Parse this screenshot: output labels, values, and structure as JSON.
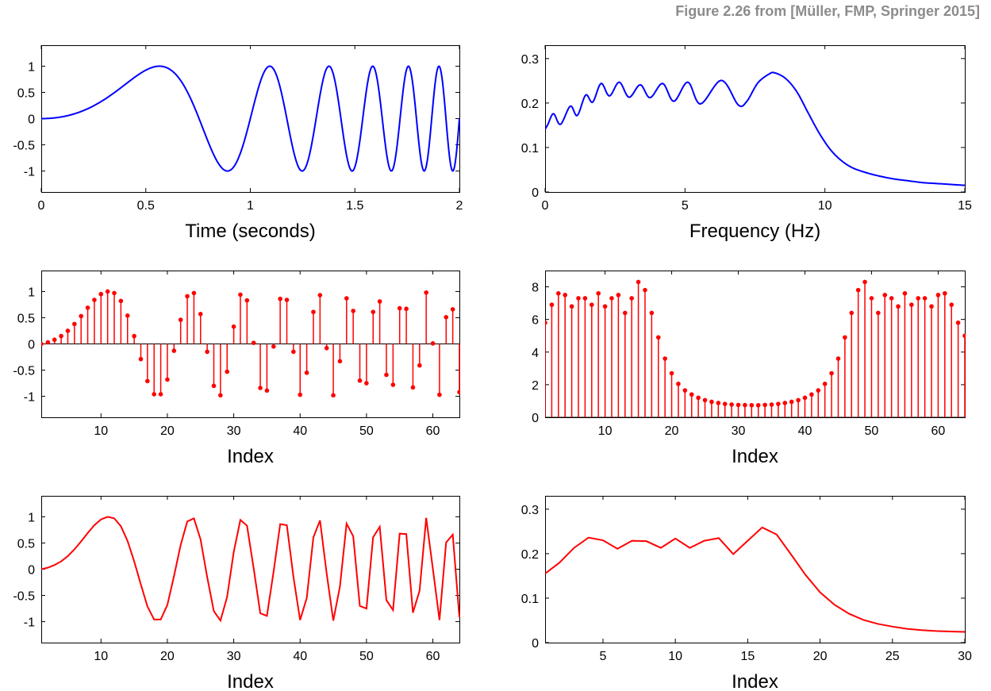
{
  "figure_title": "Figure 2.26 from [Müller, FMP, Springer 2015]",
  "colors": {
    "blue": "#0000ff",
    "red": "#ff0000",
    "axis": "#000000",
    "title": "#8c8c8c"
  },
  "chart_data": [
    {
      "id": "chirp-continuous",
      "type": "line",
      "color": "#0000ff",
      "function": "sin(pi*(t^2 + t^3))",
      "xlabel": "Time (seconds)",
      "xlim": [
        0,
        2
      ],
      "ylim": [
        -1.4,
        1.4
      ],
      "xticks": [
        0,
        0.5,
        1,
        1.5,
        2
      ],
      "xticklabels": [
        "0",
        "0.5",
        "1",
        "1.5",
        "2"
      ],
      "yticks": [
        1,
        0.5,
        0,
        -0.5,
        -1
      ],
      "yticklabels": [
        "1",
        "0.5",
        "0",
        "-0.5",
        "-1"
      ],
      "sample_count": 600
    },
    {
      "id": "spectrum-continuous",
      "type": "line",
      "color": "#0000ff",
      "xlabel": "Frequency (Hz)",
      "xlim": [
        0,
        15
      ],
      "ylim": [
        0,
        0.33
      ],
      "xticks": [
        0,
        5,
        10,
        15
      ],
      "xticklabels": [
        "0",
        "5",
        "10",
        "15"
      ],
      "yticks": [
        0.3,
        0.2,
        0.1,
        0
      ],
      "yticklabels": [
        "0.3",
        "0.2",
        "0.1",
        "0"
      ],
      "series": [
        {
          "x": [
            0,
            0.1,
            0.3,
            0.55,
            0.9,
            1.15,
            1.45,
            1.7,
            2.0,
            2.3,
            2.65,
            3.0,
            3.4,
            3.75,
            4.2,
            4.6,
            5.1,
            5.55,
            6.3,
            6.9,
            7.2,
            7.6,
            8.0,
            8.2,
            8.6,
            9.0,
            9.4,
            9.8,
            10.2,
            10.6,
            11.0,
            11.5,
            12.0,
            12.5,
            13.0,
            13.5,
            14.0,
            14.5,
            15.0
          ],
          "y": [
            0.141,
            0.152,
            0.176,
            0.152,
            0.193,
            0.172,
            0.218,
            0.202,
            0.244,
            0.216,
            0.247,
            0.213,
            0.241,
            0.212,
            0.244,
            0.204,
            0.247,
            0.198,
            0.251,
            0.196,
            0.203,
            0.245,
            0.265,
            0.268,
            0.255,
            0.225,
            0.178,
            0.132,
            0.095,
            0.07,
            0.054,
            0.043,
            0.035,
            0.029,
            0.025,
            0.021,
            0.019,
            0.017,
            0.015
          ]
        }
      ]
    },
    {
      "id": "chirp-samples-stem",
      "type": "stem",
      "color": "#ff0000",
      "xlabel": "Index",
      "xlim": [
        1,
        64
      ],
      "ylim": [
        -1.4,
        1.4
      ],
      "xticks": [
        10,
        20,
        30,
        40,
        50,
        60
      ],
      "xticklabels": [
        "10",
        "20",
        "30",
        "40",
        "50",
        "60"
      ],
      "yticks": [
        1,
        0.5,
        0,
        -0.5,
        -1
      ],
      "yticklabels": [
        "1",
        "0.5",
        "0",
        "-0.5",
        "-1"
      ],
      "values": [
        0,
        0.03,
        0.08,
        0.15,
        0.25,
        0.38,
        0.53,
        0.69,
        0.84,
        0.95,
        1.0,
        0.97,
        0.82,
        0.54,
        0.15,
        -0.29,
        -0.71,
        -0.96,
        -0.96,
        -0.68,
        -0.13,
        0.46,
        0.91,
        0.97,
        0.57,
        -0.15,
        -0.8,
        -0.98,
        -0.53,
        0.33,
        0.94,
        0.83,
        0.02,
        -0.84,
        -0.89,
        -0.05,
        0.86,
        0.84,
        -0.15,
        -0.97,
        -0.55,
        0.61,
        0.93,
        -0.08,
        -0.98,
        -0.33,
        0.87,
        0.63,
        -0.7,
        -0.75,
        0.61,
        0.81,
        -0.59,
        -0.78,
        0.68,
        0.67,
        -0.83,
        -0.41,
        0.98,
        0.01,
        -0.97,
        0.51,
        0.66,
        -0.92
      ]
    },
    {
      "id": "dft-magnitude-stem",
      "type": "stem",
      "color": "#ff0000",
      "xlabel": "Index",
      "xlim": [
        1,
        64
      ],
      "ylim": [
        0,
        9
      ],
      "xticks": [
        10,
        20,
        30,
        40,
        50,
        60
      ],
      "xticklabels": [
        "10",
        "20",
        "30",
        "40",
        "50",
        "60"
      ],
      "yticks": [
        8,
        6,
        4,
        2,
        0
      ],
      "yticklabels": [
        "8",
        "6",
        "4",
        "2",
        "0"
      ],
      "values": [
        5.8,
        6.9,
        7.6,
        7.5,
        6.8,
        7.3,
        7.3,
        6.9,
        7.6,
        6.8,
        7.3,
        7.5,
        6.4,
        7.3,
        8.3,
        7.8,
        6.4,
        4.9,
        3.6,
        2.7,
        2.05,
        1.65,
        1.4,
        1.2,
        1.05,
        0.95,
        0.88,
        0.82,
        0.78,
        0.76,
        0.75,
        0.74,
        0.74,
        0.76,
        0.78,
        0.82,
        0.88,
        0.95,
        1.05,
        1.2,
        1.4,
        1.65,
        2.05,
        2.7,
        3.6,
        4.9,
        6.4,
        7.8,
        8.3,
        7.3,
        6.4,
        7.5,
        7.3,
        6.8,
        7.6,
        6.9,
        7.3,
        7.3,
        6.8,
        7.5,
        7.6,
        6.9,
        5.8,
        5.0
      ]
    },
    {
      "id": "chirp-samples-line",
      "type": "line",
      "color": "#ff0000",
      "xlabel": "Index",
      "xlim": [
        1,
        64
      ],
      "ylim": [
        -1.4,
        1.4
      ],
      "xticks": [
        10,
        20,
        30,
        40,
        50,
        60
      ],
      "xticklabels": [
        "10",
        "20",
        "30",
        "40",
        "50",
        "60"
      ],
      "yticks": [
        1,
        0.5,
        0,
        -0.5,
        -1
      ],
      "yticklabels": [
        "1",
        "0.5",
        "0",
        "-0.5",
        "-1"
      ],
      "values": [
        0,
        0.03,
        0.08,
        0.15,
        0.25,
        0.38,
        0.53,
        0.69,
        0.84,
        0.95,
        1.0,
        0.97,
        0.82,
        0.54,
        0.15,
        -0.29,
        -0.71,
        -0.96,
        -0.96,
        -0.68,
        -0.13,
        0.46,
        0.91,
        0.97,
        0.57,
        -0.15,
        -0.8,
        -0.98,
        -0.53,
        0.33,
        0.94,
        0.83,
        0.02,
        -0.84,
        -0.89,
        -0.05,
        0.86,
        0.84,
        -0.15,
        -0.97,
        -0.55,
        0.61,
        0.93,
        -0.08,
        -0.98,
        -0.33,
        0.87,
        0.63,
        -0.7,
        -0.75,
        0.61,
        0.81,
        -0.59,
        -0.78,
        0.68,
        0.67,
        -0.83,
        -0.41,
        0.98,
        0.01,
        -0.97,
        0.51,
        0.66,
        -0.92
      ]
    },
    {
      "id": "magnitude-half-line",
      "type": "line",
      "color": "#ff0000",
      "xlabel": "Index",
      "xlim": [
        1,
        30
      ],
      "ylim": [
        0,
        0.33
      ],
      "xticks": [
        5,
        10,
        15,
        20,
        25,
        30
      ],
      "xticklabels": [
        "5",
        "10",
        "15",
        "20",
        "25",
        "30"
      ],
      "yticks": [
        0.3,
        0.2,
        0.1,
        0
      ],
      "yticklabels": [
        "0.3",
        "0.2",
        "0.1",
        "0"
      ],
      "values": [
        0.155,
        0.18,
        0.213,
        0.236,
        0.23,
        0.211,
        0.229,
        0.228,
        0.213,
        0.234,
        0.213,
        0.229,
        0.235,
        0.199,
        0.229,
        0.259,
        0.243,
        0.198,
        0.152,
        0.113,
        0.085,
        0.065,
        0.051,
        0.042,
        0.036,
        0.031,
        0.028,
        0.026,
        0.025,
        0.024
      ]
    }
  ]
}
